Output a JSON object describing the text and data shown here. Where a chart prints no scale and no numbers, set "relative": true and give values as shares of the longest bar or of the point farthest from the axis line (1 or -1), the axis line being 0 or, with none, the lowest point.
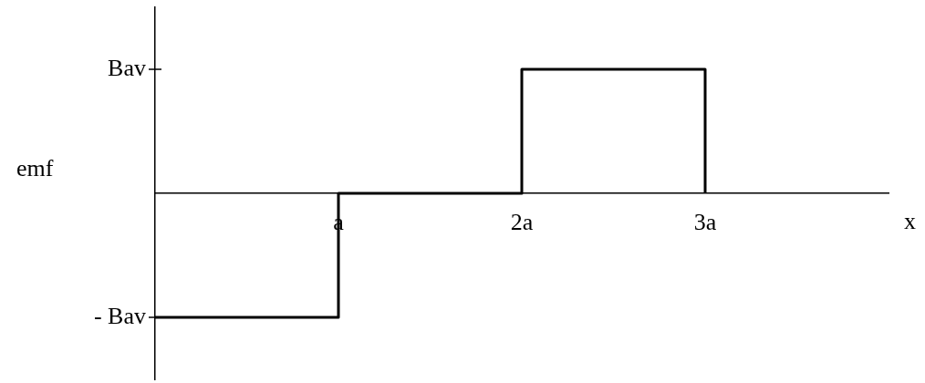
{
  "chart_data": {
    "type": "step",
    "xlabel": "x",
    "ylabel": "emf",
    "relative": true,
    "x": [
      0,
      1,
      2,
      3,
      3
    ],
    "values": [
      -1,
      0,
      1,
      1,
      0
    ],
    "color": "#000000",
    "xlim": [
      0,
      4
    ],
    "xticks": [
      {
        "value": 1,
        "label": "a"
      },
      {
        "value": 2,
        "label": "2a"
      },
      {
        "value": 3,
        "label": "3a"
      }
    ],
    "annotations": [
      "Bav",
      "- Bav"
    ],
    "grid": false,
    "legend": false,
    "marker": "none",
    "line_style": "solid"
  }
}
